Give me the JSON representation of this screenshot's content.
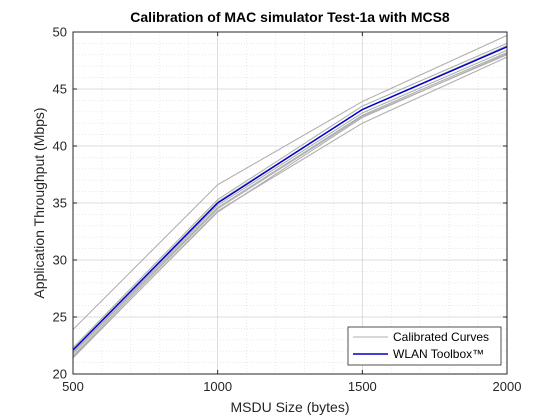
{
  "chart_data": {
    "type": "line",
    "title": "Calibration of MAC simulator Test-1a with MCS8",
    "xlabel": "MSDU Size (bytes)",
    "ylabel": "Application Throughput (Mbps)",
    "xlim": [
      500,
      2000
    ],
    "ylim": [
      20,
      50
    ],
    "xticks": [
      500,
      1000,
      1500,
      2000
    ],
    "yticks": [
      20,
      25,
      30,
      35,
      40,
      45,
      50
    ],
    "grid": true,
    "minor_grid": true,
    "legend_position": "bottom-right",
    "x": [
      500,
      1000,
      1500,
      2000
    ],
    "series": [
      {
        "name": "Calibrated Curves",
        "color": "#b0b0b0",
        "values": [
          23.9,
          36.6,
          43.9,
          49.7
        ]
      },
      {
        "name": "",
        "color": "#b0b0b0",
        "values": [
          21.4,
          34.3,
          42.0,
          47.8
        ]
      },
      {
        "name": "",
        "color": "#b0b0b0",
        "values": [
          21.6,
          34.5,
          42.6,
          48.0
        ]
      },
      {
        "name": "",
        "color": "#b0b0b0",
        "values": [
          21.8,
          34.6,
          42.7,
          48.2
        ]
      },
      {
        "name": "",
        "color": "#b0b0b0",
        "values": [
          21.9,
          34.8,
          42.9,
          48.4
        ]
      },
      {
        "name": "",
        "color": "#b0b0b0",
        "values": [
          22.1,
          35.1,
          43.2,
          48.8
        ]
      },
      {
        "name": "",
        "color": "#b0b0b0",
        "values": [
          22.3,
          35.3,
          43.5,
          49.0
        ]
      },
      {
        "name": "",
        "color": "#b0b0b0",
        "values": [
          21.5,
          34.2,
          42.5,
          48.1
        ]
      },
      {
        "name": "WLAN Toolbox™",
        "color": "#0000cc",
        "values": [
          22.1,
          35.0,
          43.2,
          48.7
        ]
      }
    ]
  }
}
